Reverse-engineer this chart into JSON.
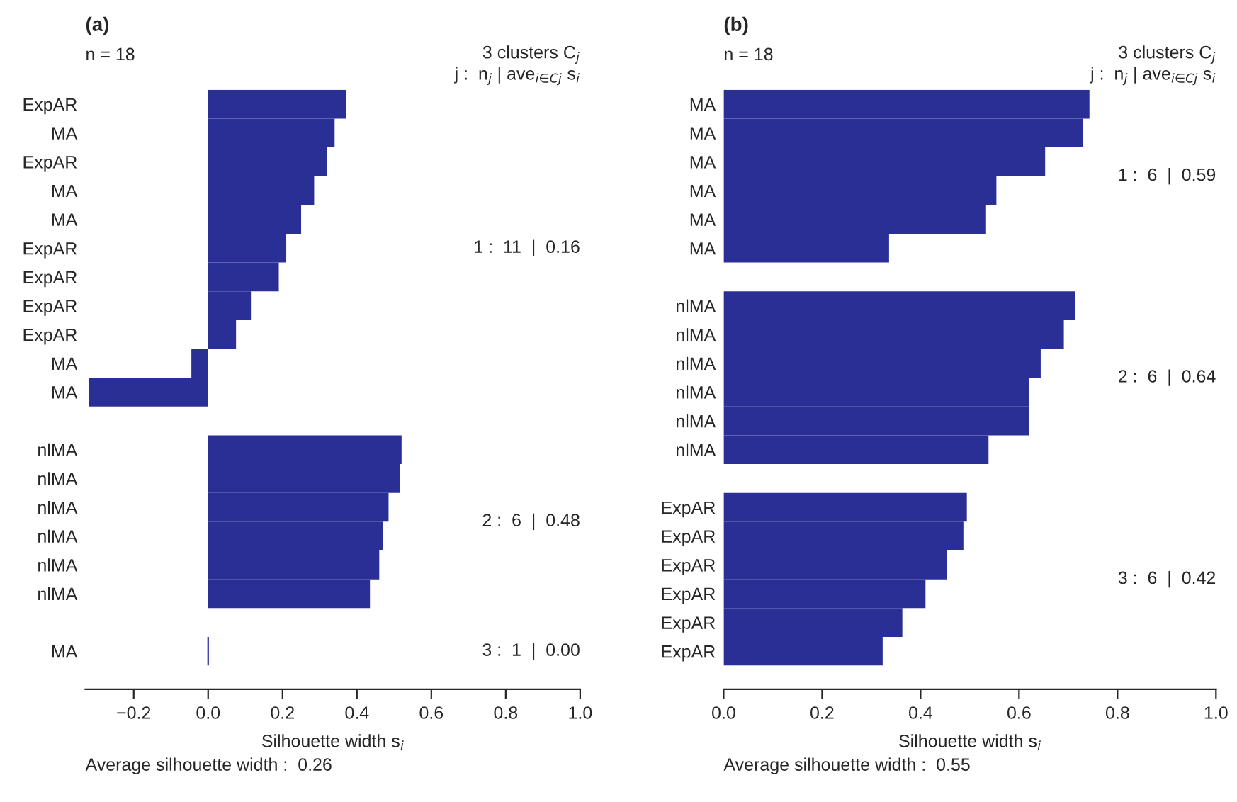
{
  "chart_data": [
    {
      "type": "bar",
      "orientation": "horizontal",
      "title": "(a)",
      "subtitle": "n = 18",
      "xlabel": "Silhouette width s$_{i}$",
      "categories": [
        "ExpAR",
        "MA",
        "ExpAR",
        "MA",
        "MA",
        "ExpAR",
        "ExpAR",
        "ExpAR",
        "ExpAR",
        "MA",
        "MA",
        null,
        "nlMA",
        "nlMA",
        "nlMA",
        "nlMA",
        "nlMA",
        "nlMA",
        null,
        "MA"
      ],
      "values": [
        0.37,
        0.34,
        0.32,
        0.285,
        0.25,
        0.21,
        0.19,
        0.115,
        0.075,
        -0.045,
        -0.32,
        null,
        0.52,
        0.515,
        0.485,
        0.47,
        0.46,
        0.435,
        null,
        0.0
      ],
      "color": "#2a2f96",
      "xlim": [
        -0.33,
        1.0
      ],
      "xticks": [
        {
          "value": -0.2,
          "label": "−0.2"
        },
        {
          "value": 0.0,
          "label": "0.0"
        },
        {
          "value": 0.2,
          "label": "0.2"
        },
        {
          "value": 0.4,
          "label": "0.4"
        },
        {
          "value": 0.6,
          "label": "0.6"
        },
        {
          "value": 0.8,
          "label": "0.8"
        },
        {
          "value": 1.0,
          "label": "1.0"
        }
      ],
      "grid": false,
      "legend": false,
      "annotations": [
        "3 clusters C$_{j}$",
        "j :  n$_{j}$ | ave$_{i∈Cj}$ s$_{i}$",
        "1 :  11  |  0.16",
        "2 :  6  |  0.48",
        "3 :  1  |  0.00",
        "Average silhouette width :  0.26"
      ]
    },
    {
      "type": "bar",
      "orientation": "horizontal",
      "title": "(b)",
      "subtitle": "n = 18",
      "xlabel": "Silhouette width s$_{i}$",
      "categories": [
        "MA",
        "MA",
        "MA",
        "MA",
        "MA",
        "MA",
        null,
        "nlMA",
        "nlMA",
        "nlMA",
        "nlMA",
        "nlMA",
        "nlMA",
        null,
        "ExpAR",
        "ExpAR",
        "ExpAR",
        "ExpAR",
        "ExpAR",
        "ExpAR"
      ],
      "values": [
        0.743,
        0.729,
        0.653,
        0.554,
        0.533,
        0.336,
        null,
        0.714,
        0.691,
        0.644,
        0.621,
        0.621,
        0.538,
        null,
        0.494,
        0.487,
        0.453,
        0.41,
        0.363,
        0.323
      ],
      "color": "#2a2f96",
      "xlim": [
        0.0,
        1.0
      ],
      "xticks": [
        {
          "value": 0.0,
          "label": "0.0"
        },
        {
          "value": 0.2,
          "label": "0.2"
        },
        {
          "value": 0.4,
          "label": "0.4"
        },
        {
          "value": 0.6,
          "label": "0.6"
        },
        {
          "value": 0.8,
          "label": "0.8"
        },
        {
          "value": 1.0,
          "label": "1.0"
        }
      ],
      "grid": false,
      "legend": false,
      "annotations": [
        "3 clusters C$_{j}$",
        "j :  n$_{j}$ | ave$_{i∈Cj}$ s$_{i}$",
        "1 :  6  |  0.59",
        "2 :  6  |  0.64",
        "3 :  6  |  0.42",
        "Average silhouette width :  0.55"
      ]
    }
  ]
}
